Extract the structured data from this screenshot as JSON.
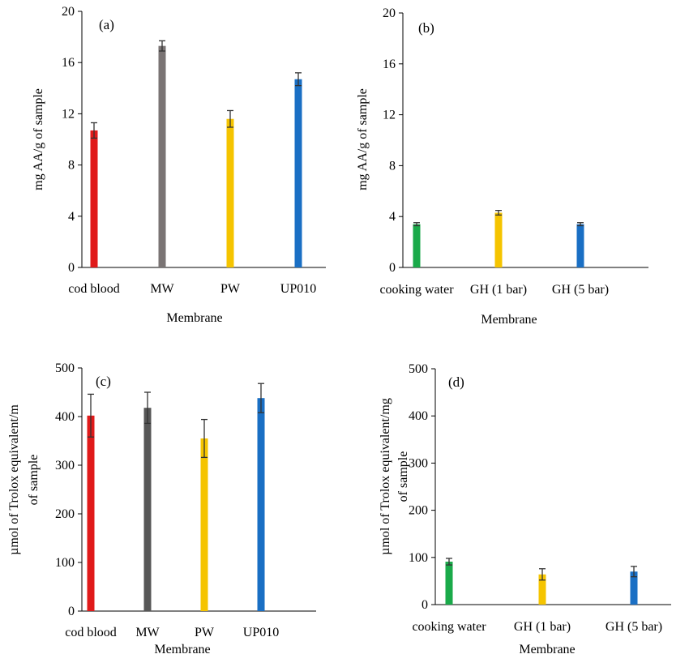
{
  "chart_data": [
    {
      "type": "bar",
      "panel_label": "(a)",
      "categories": [
        "cod blood",
        "MW",
        "PW",
        "UP010"
      ],
      "values": [
        10.7,
        17.3,
        11.6,
        14.7
      ],
      "errors": [
        0.6,
        0.4,
        0.65,
        0.5
      ],
      "colors": [
        "#e01a1a",
        "#7a7474",
        "#f5c400",
        "#1a6fc4"
      ],
      "xlabel": "Membrane",
      "ylabel": "mg AA/g of sample",
      "ylim": [
        0,
        20
      ],
      "yticks": [
        0,
        4,
        8,
        12,
        16,
        20
      ],
      "grid": false
    },
    {
      "type": "bar",
      "panel_label": "(b)",
      "categories": [
        "cooking water",
        "GH (1 bar)",
        "GH (5 bar)"
      ],
      "values": [
        3.4,
        4.3,
        3.4
      ],
      "errors": [
        0.12,
        0.18,
        0.12
      ],
      "colors": [
        "#1aaa4a",
        "#f5c400",
        "#1a6fc4"
      ],
      "xlabel": "Membrane",
      "ylabel": "mg AA/g of sample",
      "ylim": [
        0,
        20
      ],
      "yticks": [
        0,
        4,
        8,
        12,
        16,
        20
      ],
      "grid": false
    },
    {
      "type": "bar",
      "panel_label": "(c)",
      "categories": [
        "cod blood",
        "MW",
        "PW",
        "UP010"
      ],
      "values": [
        402,
        418,
        355,
        438
      ],
      "errors": [
        44,
        32,
        39,
        30
      ],
      "colors": [
        "#e01a1a",
        "#575757",
        "#f5c400",
        "#1a6fc4"
      ],
      "xlabel": "Membrane",
      "ylabel": [
        "µmol of Trolox equivalent/m",
        "of sample"
      ],
      "ylim": [
        0,
        500
      ],
      "yticks": [
        0,
        100,
        200,
        300,
        400,
        500
      ],
      "grid": false
    },
    {
      "type": "bar",
      "panel_label": "(d)",
      "categories": [
        "cooking water",
        "GH (1 bar)",
        "GH (5 bar)"
      ],
      "values": [
        91,
        64,
        70
      ],
      "errors": [
        7,
        12,
        11
      ],
      "colors": [
        "#1aaa4a",
        "#f5c400",
        "#1a6fc4"
      ],
      "xlabel": "Membrane",
      "ylabel": [
        "µmol of Trolox equivalent/mg",
        "of sample"
      ],
      "ylim": [
        0,
        500
      ],
      "yticks": [
        0,
        100,
        200,
        300,
        400,
        500
      ],
      "grid": false
    }
  ]
}
